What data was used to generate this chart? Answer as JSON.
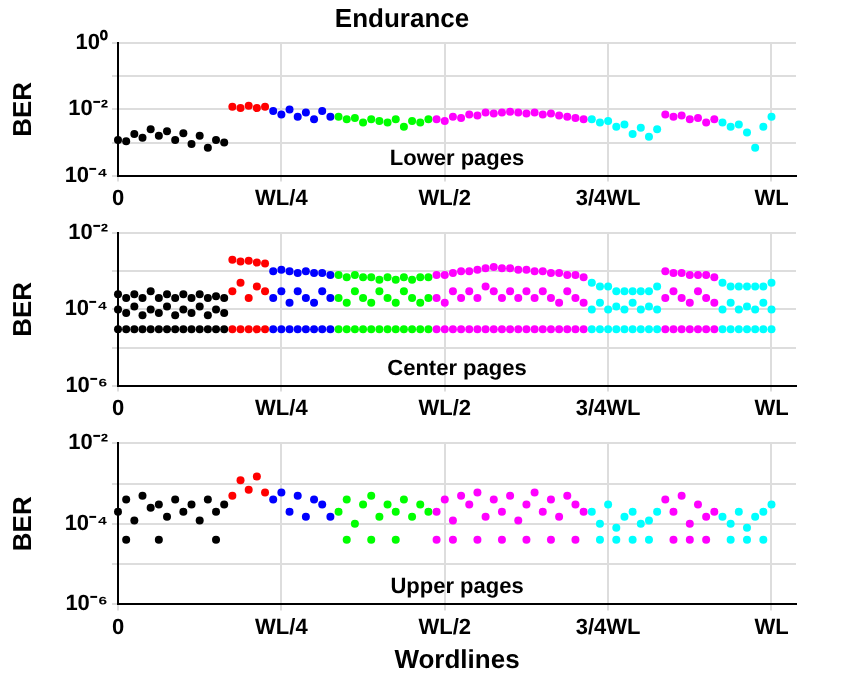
{
  "chart_data": [
    {
      "type": "scatter",
      "title": "Endurance",
      "ylabel": "BER",
      "annotations": [
        "Lower pages"
      ],
      "log": "y",
      "grid": true,
      "legend": false,
      "marker": "circle",
      "categories": [
        "0",
        null,
        null,
        null,
        null,
        null,
        null,
        null,
        null,
        null,
        null,
        null,
        null,
        null,
        null,
        null,
        null,
        null,
        null,
        null,
        "WL/4",
        null,
        null,
        null,
        null,
        null,
        null,
        null,
        null,
        null,
        null,
        null,
        null,
        null,
        null,
        null,
        null,
        null,
        null,
        null,
        "WL/2",
        null,
        null,
        null,
        null,
        null,
        null,
        null,
        null,
        null,
        null,
        null,
        null,
        null,
        null,
        null,
        null,
        null,
        null,
        null,
        "3/4WL",
        null,
        null,
        null,
        null,
        null,
        null,
        null,
        null,
        null,
        null,
        null,
        null,
        null,
        null,
        null,
        null,
        null,
        null,
        null,
        "WL",
        null,
        null,
        null
      ],
      "ylim": [
        0.0001,
        1
      ],
      "yticks": [
        {
          "value": 0.0001,
          "label": "10⁻⁴"
        },
        {
          "value": 0.001,
          "label": null
        },
        {
          "value": 0.01,
          "label": "10⁻²"
        },
        {
          "value": 0.1,
          "label": null
        },
        {
          "value": 1,
          "label": "10⁰"
        }
      ],
      "series": [
        {
          "values": [
            0.0012,
            0.0011,
            0.0018,
            0.0014,
            0.0025,
            0.0016,
            0.0022,
            0.0012,
            0.0019,
            0.0009,
            0.0016,
            0.0007,
            0.0012,
            0.001,
            0.012,
            0.011,
            0.013,
            0.011,
            0.012,
            0.009,
            0.007,
            0.01,
            0.006,
            0.008,
            0.005,
            0.009,
            0.006,
            0.006,
            0.005,
            0.0055,
            0.004,
            0.005,
            0.0045,
            0.004,
            0.005,
            0.003,
            0.0045,
            0.004,
            0.005,
            0.005,
            0.0045,
            0.006,
            0.0055,
            0.007,
            0.0065,
            0.008,
            0.0075,
            0.008,
            0.0085,
            0.008,
            0.0075,
            0.008,
            0.007,
            0.0075,
            0.0065,
            0.006,
            0.0055,
            0.005,
            0.005,
            0.004,
            0.0045,
            0.003,
            0.0035,
            0.0018,
            0.0028,
            0.0015,
            0.0025,
            0.007,
            0.006,
            0.0065,
            0.005,
            0.0055,
            0.004,
            0.005,
            0.004,
            0.003,
            0.0035,
            0.002,
            0.0007,
            0.003,
            0.006,
            null,
            null,
            null
          ],
          "colors": [
            "#000000",
            "#000000",
            "#000000",
            "#000000",
            "#000000",
            "#000000",
            "#000000",
            "#000000",
            "#000000",
            "#000000",
            "#000000",
            "#000000",
            "#000000",
            "#000000",
            "#ff0000",
            "#ff0000",
            "#ff0000",
            "#ff0000",
            "#ff0000",
            "#0000ff",
            "#0000ff",
            "#0000ff",
            "#0000ff",
            "#0000ff",
            "#0000ff",
            "#0000ff",
            "#0000ff",
            "#00ff00",
            "#00ff00",
            "#00ff00",
            "#00ff00",
            "#00ff00",
            "#00ff00",
            "#00ff00",
            "#00ff00",
            "#00ff00",
            "#00ff00",
            "#00ff00",
            "#00ff00",
            "#ff00ff",
            "#ff00ff",
            "#ff00ff",
            "#ff00ff",
            "#ff00ff",
            "#ff00ff",
            "#ff00ff",
            "#ff00ff",
            "#ff00ff",
            "#ff00ff",
            "#ff00ff",
            "#ff00ff",
            "#ff00ff",
            "#ff00ff",
            "#ff00ff",
            "#ff00ff",
            "#ff00ff",
            "#ff00ff",
            "#ff00ff",
            "#00ffff",
            "#00ffff",
            "#00ffff",
            "#00ffff",
            "#00ffff",
            "#00ffff",
            "#00ffff",
            "#00ffff",
            "#00ffff",
            "#ff00ff",
            "#ff00ff",
            "#ff00ff",
            "#ff00ff",
            "#ff00ff",
            "#ff00ff",
            "#ff00ff",
            "#00ffff",
            "#00ffff",
            "#00ffff",
            "#00ffff",
            "#00ffff",
            "#00ffff",
            "#00ffff",
            null,
            null,
            null
          ]
        }
      ]
    },
    {
      "type": "scatter",
      "ylabel": "BER",
      "annotations": [
        "Center pages"
      ],
      "log": "y",
      "grid": true,
      "legend": false,
      "marker": "circle",
      "categories": [
        "0",
        null,
        null,
        null,
        null,
        null,
        null,
        null,
        null,
        null,
        null,
        null,
        null,
        null,
        null,
        null,
        null,
        null,
        null,
        null,
        "WL/4",
        null,
        null,
        null,
        null,
        null,
        null,
        null,
        null,
        null,
        null,
        null,
        null,
        null,
        null,
        null,
        null,
        null,
        null,
        null,
        "WL/2",
        null,
        null,
        null,
        null,
        null,
        null,
        null,
        null,
        null,
        null,
        null,
        null,
        null,
        null,
        null,
        null,
        null,
        null,
        null,
        "3/4WL",
        null,
        null,
        null,
        null,
        null,
        null,
        null,
        null,
        null,
        null,
        null,
        null,
        null,
        null,
        null,
        null,
        null,
        null,
        null,
        "WL",
        null,
        null,
        null
      ],
      "ylim": [
        1e-06,
        0.01
      ],
      "yticks": [
        {
          "value": 1e-06,
          "label": "10⁻⁶"
        },
        {
          "value": 1e-05,
          "label": null
        },
        {
          "value": 0.0001,
          "label": "10⁻⁴"
        },
        {
          "value": 0.001,
          "label": null
        },
        {
          "value": 0.01,
          "label": "10⁻²"
        }
      ],
      "series": [
        {
          "values": [
            3e-05,
            3e-05,
            3e-05,
            3e-05,
            3e-05,
            3e-05,
            3e-05,
            3e-05,
            3e-05,
            3e-05,
            3e-05,
            3e-05,
            3e-05,
            3e-05,
            3e-05,
            3e-05,
            3e-05,
            3e-05,
            3e-05,
            3e-05,
            3e-05,
            3e-05,
            3e-05,
            3e-05,
            3e-05,
            3e-05,
            3e-05,
            3e-05,
            3e-05,
            3e-05,
            3e-05,
            3e-05,
            3e-05,
            3e-05,
            3e-05,
            3e-05,
            3e-05,
            3e-05,
            3e-05,
            3e-05,
            3e-05,
            3e-05,
            3e-05,
            3e-05,
            3e-05,
            3e-05,
            3e-05,
            3e-05,
            3e-05,
            3e-05,
            3e-05,
            3e-05,
            3e-05,
            3e-05,
            3e-05,
            3e-05,
            3e-05,
            3e-05,
            3e-05,
            3e-05,
            3e-05,
            3e-05,
            3e-05,
            3e-05,
            3e-05,
            3e-05,
            3e-05,
            3e-05,
            3e-05,
            3e-05,
            3e-05,
            3e-05,
            3e-05,
            3e-05,
            3e-05,
            3e-05,
            3e-05,
            3e-05,
            3e-05,
            3e-05,
            3e-05,
            null,
            null,
            null
          ],
          "colors": [
            "#000000",
            "#000000",
            "#000000",
            "#000000",
            "#000000",
            "#000000",
            "#000000",
            "#000000",
            "#000000",
            "#000000",
            "#000000",
            "#000000",
            "#000000",
            "#000000",
            "#ff0000",
            "#ff0000",
            "#ff0000",
            "#ff0000",
            "#ff0000",
            "#0000ff",
            "#0000ff",
            "#0000ff",
            "#0000ff",
            "#0000ff",
            "#0000ff",
            "#0000ff",
            "#0000ff",
            "#00ff00",
            "#00ff00",
            "#00ff00",
            "#00ff00",
            "#00ff00",
            "#00ff00",
            "#00ff00",
            "#00ff00",
            "#00ff00",
            "#00ff00",
            "#00ff00",
            "#00ff00",
            "#ff00ff",
            "#ff00ff",
            "#ff00ff",
            "#ff00ff",
            "#ff00ff",
            "#ff00ff",
            "#ff00ff",
            "#ff00ff",
            "#ff00ff",
            "#ff00ff",
            "#ff00ff",
            "#ff00ff",
            "#ff00ff",
            "#ff00ff",
            "#ff00ff",
            "#ff00ff",
            "#ff00ff",
            "#ff00ff",
            "#ff00ff",
            "#00ffff",
            "#00ffff",
            "#00ffff",
            "#00ffff",
            "#00ffff",
            "#00ffff",
            "#00ffff",
            "#00ffff",
            "#00ffff",
            "#ff00ff",
            "#ff00ff",
            "#ff00ff",
            "#ff00ff",
            "#ff00ff",
            "#ff00ff",
            "#ff00ff",
            "#00ffff",
            "#00ffff",
            "#00ffff",
            "#00ffff",
            "#00ffff",
            "#00ffff",
            "#00ffff",
            null,
            null,
            null
          ]
        },
        {
          "values": [
            0.0001,
            8e-05,
            0.00012,
            7e-05,
            0.0001,
            8e-05,
            0.00012,
            7e-05,
            0.0001,
            8e-05,
            0.00012,
            7e-05,
            0.0001,
            8e-05,
            0.0003,
            0.0005,
            0.0002,
            0.0004,
            0.0003,
            0.0002,
            0.0003,
            0.00015,
            0.0003,
            0.0002,
            0.00015,
            0.0003,
            0.0002,
            0.0002,
            0.00015,
            0.0003,
            0.0002,
            0.00015,
            0.0003,
            0.0002,
            0.00015,
            0.0003,
            0.0002,
            0.00015,
            0.0002,
            0.0002,
            0.00015,
            0.0003,
            0.0002,
            0.0003,
            0.0002,
            0.0004,
            0.0003,
            0.0002,
            0.0003,
            0.0002,
            0.0003,
            0.0002,
            0.0003,
            0.0002,
            0.00015,
            0.0003,
            0.0002,
            0.00015,
            0.0001,
            0.00015,
            0.0001,
            0.00012,
            0.0001,
            0.00015,
            0.0001,
            0.00012,
            0.0001,
            0.0002,
            0.0003,
            0.0002,
            0.00015,
            0.0003,
            0.0002,
            0.00015,
            0.0001,
            0.00015,
            0.0001,
            0.00012,
            0.0001,
            0.00015,
            0.0001,
            null,
            null,
            null
          ],
          "colors": [
            "#000000",
            "#000000",
            "#000000",
            "#000000",
            "#000000",
            "#000000",
            "#000000",
            "#000000",
            "#000000",
            "#000000",
            "#000000",
            "#000000",
            "#000000",
            "#000000",
            "#ff0000",
            "#ff0000",
            "#ff0000",
            "#ff0000",
            "#ff0000",
            "#0000ff",
            "#0000ff",
            "#0000ff",
            "#0000ff",
            "#0000ff",
            "#0000ff",
            "#0000ff",
            "#0000ff",
            "#00ff00",
            "#00ff00",
            "#00ff00",
            "#00ff00",
            "#00ff00",
            "#00ff00",
            "#00ff00",
            "#00ff00",
            "#00ff00",
            "#00ff00",
            "#00ff00",
            "#00ff00",
            "#ff00ff",
            "#ff00ff",
            "#ff00ff",
            "#ff00ff",
            "#ff00ff",
            "#ff00ff",
            "#ff00ff",
            "#ff00ff",
            "#ff00ff",
            "#ff00ff",
            "#ff00ff",
            "#ff00ff",
            "#ff00ff",
            "#ff00ff",
            "#ff00ff",
            "#ff00ff",
            "#ff00ff",
            "#ff00ff",
            "#ff00ff",
            "#00ffff",
            "#00ffff",
            "#00ffff",
            "#00ffff",
            "#00ffff",
            "#00ffff",
            "#00ffff",
            "#00ffff",
            "#00ffff",
            "#ff00ff",
            "#ff00ff",
            "#ff00ff",
            "#ff00ff",
            "#ff00ff",
            "#ff00ff",
            "#ff00ff",
            "#00ffff",
            "#00ffff",
            "#00ffff",
            "#00ffff",
            "#00ffff",
            "#00ffff",
            "#00ffff",
            null,
            null,
            null
          ]
        },
        {
          "values": [
            0.00025,
            0.0002,
            0.00025,
            0.0002,
            0.0003,
            0.0002,
            0.00025,
            0.0002,
            0.00025,
            0.0002,
            0.00025,
            0.0002,
            0.00022,
            0.0002,
            0.002,
            0.0018,
            0.0019,
            0.0017,
            0.0016,
            0.001,
            0.0011,
            0.001,
            0.0009,
            0.001,
            0.0009,
            0.0009,
            0.0008,
            0.0008,
            0.0007,
            0.0008,
            0.0007,
            0.0007,
            0.0006,
            0.0007,
            0.0006,
            0.0007,
            0.0006,
            0.0007,
            0.0007,
            0.0008,
            0.0008,
            0.0009,
            0.001,
            0.001,
            0.0011,
            0.0012,
            0.0013,
            0.0012,
            0.0012,
            0.0011,
            0.0011,
            0.001,
            0.001,
            0.0009,
            0.0009,
            0.0008,
            0.0008,
            0.0007,
            0.0005,
            0.0004,
            0.0004,
            0.0003,
            0.0003,
            0.0003,
            0.0003,
            0.0003,
            0.0004,
            0.001,
            0.0009,
            0.0009,
            0.0008,
            0.0008,
            0.0008,
            0.0007,
            0.0005,
            0.0004,
            0.0004,
            0.0004,
            0.0004,
            0.0004,
            0.0005,
            null,
            null,
            null
          ],
          "colors": [
            "#000000",
            "#000000",
            "#000000",
            "#000000",
            "#000000",
            "#000000",
            "#000000",
            "#000000",
            "#000000",
            "#000000",
            "#000000",
            "#000000",
            "#000000",
            "#000000",
            "#ff0000",
            "#ff0000",
            "#ff0000",
            "#ff0000",
            "#ff0000",
            "#0000ff",
            "#0000ff",
            "#0000ff",
            "#0000ff",
            "#0000ff",
            "#0000ff",
            "#0000ff",
            "#0000ff",
            "#00ff00",
            "#00ff00",
            "#00ff00",
            "#00ff00",
            "#00ff00",
            "#00ff00",
            "#00ff00",
            "#00ff00",
            "#00ff00",
            "#00ff00",
            "#00ff00",
            "#00ff00",
            "#ff00ff",
            "#ff00ff",
            "#ff00ff",
            "#ff00ff",
            "#ff00ff",
            "#ff00ff",
            "#ff00ff",
            "#ff00ff",
            "#ff00ff",
            "#ff00ff",
            "#ff00ff",
            "#ff00ff",
            "#ff00ff",
            "#ff00ff",
            "#ff00ff",
            "#ff00ff",
            "#ff00ff",
            "#ff00ff",
            "#ff00ff",
            "#00ffff",
            "#00ffff",
            "#00ffff",
            "#00ffff",
            "#00ffff",
            "#00ffff",
            "#00ffff",
            "#00ffff",
            "#00ffff",
            "#ff00ff",
            "#ff00ff",
            "#ff00ff",
            "#ff00ff",
            "#ff00ff",
            "#ff00ff",
            "#ff00ff",
            "#00ffff",
            "#00ffff",
            "#00ffff",
            "#00ffff",
            "#00ffff",
            "#00ffff",
            "#00ffff",
            null,
            null,
            null
          ]
        }
      ]
    },
    {
      "type": "scatter",
      "ylabel": "BER",
      "xlabel": "Wordlines",
      "annotations": [
        "Upper pages"
      ],
      "log": "y",
      "grid": true,
      "legend": false,
      "marker": "circle",
      "categories": [
        "0",
        null,
        null,
        null,
        null,
        null,
        null,
        null,
        null,
        null,
        null,
        null,
        null,
        null,
        null,
        null,
        null,
        null,
        null,
        null,
        "WL/4",
        null,
        null,
        null,
        null,
        null,
        null,
        null,
        null,
        null,
        null,
        null,
        null,
        null,
        null,
        null,
        null,
        null,
        null,
        null,
        "WL/2",
        null,
        null,
        null,
        null,
        null,
        null,
        null,
        null,
        null,
        null,
        null,
        null,
        null,
        null,
        null,
        null,
        null,
        null,
        null,
        "3/4WL",
        null,
        null,
        null,
        null,
        null,
        null,
        null,
        null,
        null,
        null,
        null,
        null,
        null,
        null,
        null,
        null,
        null,
        null,
        null,
        "WL",
        null,
        null,
        null
      ],
      "ylim": [
        1e-06,
        0.01
      ],
      "yticks": [
        {
          "value": 1e-06,
          "label": "10⁻⁶"
        },
        {
          "value": 1e-05,
          "label": null
        },
        {
          "value": 0.0001,
          "label": "10⁻⁴"
        },
        {
          "value": 0.001,
          "label": null
        },
        {
          "value": 0.01,
          "label": "10⁻²"
        }
      ],
      "series": [
        {
          "values": [
            0.0002,
            0.0004,
            0.00012,
            0.0005,
            0.00025,
            0.0003,
            0.00015,
            0.0004,
            0.0002,
            0.0003,
            0.00012,
            0.0004,
            0.0002,
            0.0003,
            0.0005,
            0.0012,
            0.0007,
            0.0015,
            0.0006,
            0.0004,
            0.0006,
            0.0002,
            0.0005,
            0.00015,
            0.0004,
            0.0003,
            0.00015,
            0.0002,
            0.0004,
            0.0001,
            0.0003,
            0.0005,
            0.00015,
            0.0003,
            0.0002,
            0.0004,
            0.00015,
            0.0003,
            0.0002,
            0.0002,
            0.0004,
            0.00012,
            0.0005,
            0.0003,
            0.0006,
            0.00015,
            0.0004,
            0.0002,
            0.0005,
            0.00012,
            0.0003,
            0.0006,
            0.0002,
            0.0004,
            0.00015,
            0.0005,
            0.0003,
            0.0002,
            0.0002,
            0.0001,
            0.0003,
            8e-05,
            0.00015,
            0.0002,
            0.0001,
            0.00012,
            0.0002,
            0.0004,
            0.0002,
            0.0005,
            0.0001,
            0.0003,
            0.00015,
            0.0002,
            0.00015,
            0.0001,
            0.0002,
            8e-05,
            0.00015,
            0.0002,
            0.0003,
            null,
            null,
            null
          ],
          "colors": [
            "#000000",
            "#000000",
            "#000000",
            "#000000",
            "#000000",
            "#000000",
            "#000000",
            "#000000",
            "#000000",
            "#000000",
            "#000000",
            "#000000",
            "#000000",
            "#000000",
            "#ff0000",
            "#ff0000",
            "#ff0000",
            "#ff0000",
            "#ff0000",
            "#0000ff",
            "#0000ff",
            "#0000ff",
            "#0000ff",
            "#0000ff",
            "#0000ff",
            "#0000ff",
            "#0000ff",
            "#00ff00",
            "#00ff00",
            "#00ff00",
            "#00ff00",
            "#00ff00",
            "#00ff00",
            "#00ff00",
            "#00ff00",
            "#00ff00",
            "#00ff00",
            "#00ff00",
            "#00ff00",
            "#ff00ff",
            "#ff00ff",
            "#ff00ff",
            "#ff00ff",
            "#ff00ff",
            "#ff00ff",
            "#ff00ff",
            "#ff00ff",
            "#ff00ff",
            "#ff00ff",
            "#ff00ff",
            "#ff00ff",
            "#ff00ff",
            "#ff00ff",
            "#ff00ff",
            "#ff00ff",
            "#ff00ff",
            "#ff00ff",
            "#ff00ff",
            "#00ffff",
            "#00ffff",
            "#00ffff",
            "#00ffff",
            "#00ffff",
            "#00ffff",
            "#00ffff",
            "#00ffff",
            "#00ffff",
            "#ff00ff",
            "#ff00ff",
            "#ff00ff",
            "#ff00ff",
            "#ff00ff",
            "#ff00ff",
            "#ff00ff",
            "#00ffff",
            "#00ffff",
            "#00ffff",
            "#00ffff",
            "#00ffff",
            "#00ffff",
            "#00ffff",
            null,
            null,
            null
          ]
        },
        {
          "values": [
            null,
            4e-05,
            null,
            null,
            null,
            4e-05,
            null,
            null,
            null,
            null,
            null,
            null,
            4e-05,
            null,
            null,
            null,
            null,
            null,
            null,
            null,
            null,
            null,
            null,
            null,
            null,
            null,
            null,
            null,
            4e-05,
            null,
            null,
            4e-05,
            null,
            null,
            4e-05,
            null,
            null,
            null,
            null,
            4e-05,
            null,
            4e-05,
            null,
            null,
            4e-05,
            null,
            null,
            4e-05,
            null,
            null,
            4e-05,
            null,
            null,
            4e-05,
            null,
            null,
            4e-05,
            null,
            null,
            4e-05,
            null,
            4e-05,
            null,
            4e-05,
            null,
            4e-05,
            null,
            null,
            4e-05,
            null,
            4e-05,
            null,
            4e-05,
            null,
            null,
            4e-05,
            null,
            4e-05,
            null,
            4e-05,
            null,
            null,
            null,
            null
          ],
          "colors": [
            "#000000",
            "#000000",
            "#000000",
            "#000000",
            "#000000",
            "#000000",
            "#000000",
            "#000000",
            "#000000",
            "#000000",
            "#000000",
            "#000000",
            "#000000",
            "#000000",
            "#ff0000",
            "#ff0000",
            "#ff0000",
            "#ff0000",
            "#ff0000",
            "#0000ff",
            "#0000ff",
            "#0000ff",
            "#0000ff",
            "#0000ff",
            "#0000ff",
            "#0000ff",
            "#0000ff",
            "#00ff00",
            "#00ff00",
            "#00ff00",
            "#00ff00",
            "#00ff00",
            "#00ff00",
            "#00ff00",
            "#00ff00",
            "#00ff00",
            "#00ff00",
            "#00ff00",
            "#00ff00",
            "#ff00ff",
            "#ff00ff",
            "#ff00ff",
            "#ff00ff",
            "#ff00ff",
            "#ff00ff",
            "#ff00ff",
            "#ff00ff",
            "#ff00ff",
            "#ff00ff",
            "#ff00ff",
            "#ff00ff",
            "#ff00ff",
            "#ff00ff",
            "#ff00ff",
            "#ff00ff",
            "#ff00ff",
            "#ff00ff",
            "#ff00ff",
            "#00ffff",
            "#00ffff",
            "#00ffff",
            "#00ffff",
            "#00ffff",
            "#00ffff",
            "#00ffff",
            "#00ffff",
            "#00ffff",
            "#ff00ff",
            "#ff00ff",
            "#ff00ff",
            "#ff00ff",
            "#ff00ff",
            "#ff00ff",
            "#ff00ff",
            "#00ffff",
            "#00ffff",
            "#00ffff",
            "#00ffff",
            "#00ffff",
            "#00ffff",
            "#00ffff",
            null,
            null,
            null
          ]
        }
      ]
    }
  ]
}
